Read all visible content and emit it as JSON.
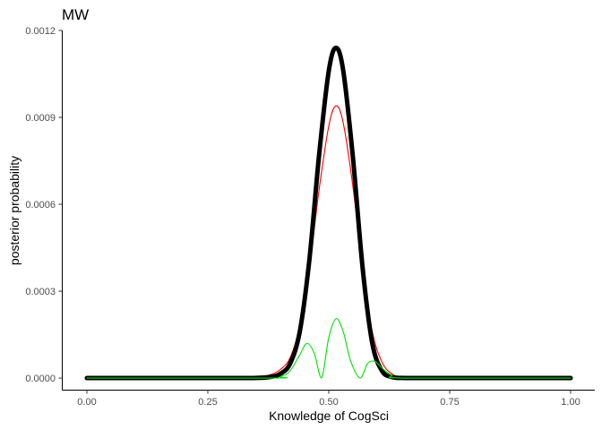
{
  "chart_data": {
    "type": "line",
    "title": "MW",
    "xlabel": "Knowledge of CogSci",
    "ylabel": "posterior probability",
    "xlim": [
      -0.05,
      1.05
    ],
    "ylim": [
      -4e-05,
      0.0012
    ],
    "x_ticks": [
      0.0,
      0.25,
      0.5,
      0.75,
      1.0
    ],
    "x_tick_labels": [
      "0.00",
      "0.25",
      "0.50",
      "0.75",
      "1.00"
    ],
    "y_ticks": [
      0.0,
      0.0003,
      0.0006,
      0.0009,
      0.0012
    ],
    "y_tick_labels": [
      "0.0000",
      "0.0003",
      "0.0006",
      "0.0009",
      "0.0012"
    ],
    "grid": false,
    "legend": "none",
    "series": [
      {
        "color": "#ff0000",
        "line_width": "thin",
        "x": [
          0.0,
          0.3,
          0.35,
          0.38,
          0.4,
          0.42,
          0.44,
          0.46,
          0.48,
          0.5,
          0.515,
          0.53,
          0.55,
          0.57,
          0.59,
          0.61,
          0.63,
          0.65,
          0.68,
          0.72,
          1.0
        ],
        "y": [
          0.0,
          0.0,
          2e-06,
          1.2e-05,
          3e-05,
          7e-05,
          0.00018,
          0.00038,
          0.00065,
          0.00087,
          0.00094,
          0.00088,
          0.00066,
          0.00038,
          0.00016,
          5.5e-05,
          1.5e-05,
          4e-06,
          0.0,
          0.0,
          0.0
        ]
      },
      {
        "color": "#000000",
        "line_width": "thick",
        "x": [
          0.0,
          0.3,
          0.35,
          0.38,
          0.4,
          0.42,
          0.44,
          0.46,
          0.48,
          0.5,
          0.515,
          0.53,
          0.55,
          0.57,
          0.59,
          0.61,
          0.63,
          0.65,
          0.68,
          0.72,
          1.0
        ],
        "y": [
          0.0,
          0.0,
          5e-07,
          4e-06,
          1.5e-05,
          5e-05,
          0.00016,
          0.00041,
          0.00077,
          0.00106,
          0.00114,
          0.00106,
          0.00076,
          0.00038,
          0.00012,
          2.5e-05,
          4e-06,
          5e-07,
          0.0,
          0.0,
          0.0
        ]
      },
      {
        "color": "#00e000",
        "line_width": "thin",
        "x": [
          0.0,
          0.38,
          0.4,
          0.42,
          0.44,
          0.455,
          0.47,
          0.485,
          0.5,
          0.515,
          0.53,
          0.545,
          0.565,
          0.58,
          0.595,
          0.61,
          0.63,
          0.66,
          1.0
        ],
        "y": [
          0.0,
          0.0,
          5e-06,
          2.5e-05,
          8e-05,
          0.00012,
          8.5e-05,
          0.0,
          0.00014,
          0.000205,
          0.00016,
          6e-05,
          0.0,
          5e-05,
          5.8e-05,
          3.5e-05,
          1e-05,
          0.0,
          0.0
        ]
      }
    ]
  }
}
